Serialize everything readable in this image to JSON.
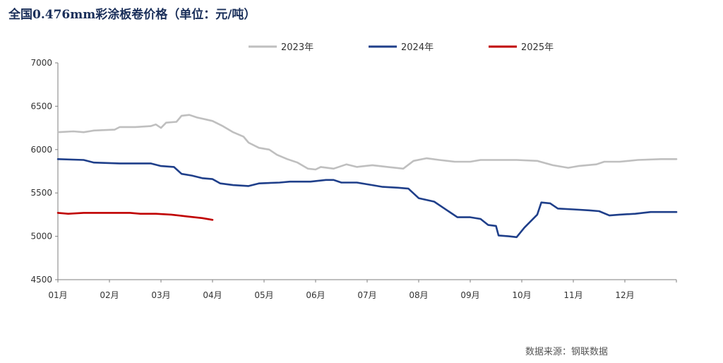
{
  "title": "全国0.476mm彩涂板卷价格（单位：元/吨）",
  "source": "数据来源：钢联数据",
  "chart_data": {
    "type": "line",
    "title": "全国0.476mm彩涂板卷价格（单位：元/吨）",
    "xlabel": "",
    "ylabel": "",
    "categories": [
      "01月",
      "02月",
      "03月",
      "04月",
      "05月",
      "06月",
      "07月",
      "08月",
      "09月",
      "10月",
      "11月",
      "12月"
    ],
    "ylim": [
      4500,
      7000
    ],
    "yticks": [
      4500,
      5000,
      5500,
      6000,
      6500,
      7000
    ],
    "x_unit": "month index (1 = start of 01月)",
    "legend_position": "top",
    "grid": false,
    "series": [
      {
        "name": "2023年",
        "color": "#bfbfbf",
        "points": [
          [
            1.0,
            6200
          ],
          [
            1.3,
            6210
          ],
          [
            1.5,
            6200
          ],
          [
            1.7,
            6220
          ],
          [
            2.1,
            6230
          ],
          [
            2.2,
            6260
          ],
          [
            2.5,
            6260
          ],
          [
            2.8,
            6270
          ],
          [
            2.9,
            6290
          ],
          [
            3.0,
            6250
          ],
          [
            3.1,
            6310
          ],
          [
            3.3,
            6320
          ],
          [
            3.4,
            6390
          ],
          [
            3.55,
            6400
          ],
          [
            3.7,
            6370
          ],
          [
            3.85,
            6350
          ],
          [
            4.0,
            6330
          ],
          [
            4.2,
            6270
          ],
          [
            4.4,
            6200
          ],
          [
            4.6,
            6150
          ],
          [
            4.7,
            6080
          ],
          [
            4.9,
            6020
          ],
          [
            5.1,
            6000
          ],
          [
            5.25,
            5940
          ],
          [
            5.45,
            5890
          ],
          [
            5.65,
            5850
          ],
          [
            5.85,
            5780
          ],
          [
            6.0,
            5770
          ],
          [
            6.1,
            5800
          ],
          [
            6.35,
            5780
          ],
          [
            6.6,
            5830
          ],
          [
            6.8,
            5800
          ],
          [
            7.1,
            5820
          ],
          [
            7.4,
            5800
          ],
          [
            7.7,
            5780
          ],
          [
            7.9,
            5870
          ],
          [
            8.15,
            5900
          ],
          [
            8.4,
            5880
          ],
          [
            8.7,
            5860
          ],
          [
            9.0,
            5860
          ],
          [
            9.2,
            5880
          ],
          [
            9.5,
            5880
          ],
          [
            9.9,
            5880
          ],
          [
            10.3,
            5870
          ],
          [
            10.6,
            5820
          ],
          [
            10.9,
            5790
          ],
          [
            11.1,
            5810
          ],
          [
            11.45,
            5830
          ],
          [
            11.6,
            5860
          ],
          [
            11.9,
            5860
          ],
          [
            12.25,
            5880
          ],
          [
            12.7,
            5890
          ],
          [
            13.0,
            5890
          ]
        ]
      },
      {
        "name": "2024年",
        "color": "#1f3f8a",
        "points": [
          [
            1.0,
            5890
          ],
          [
            1.5,
            5880
          ],
          [
            1.7,
            5850
          ],
          [
            2.2,
            5840
          ],
          [
            2.8,
            5840
          ],
          [
            3.0,
            5810
          ],
          [
            3.25,
            5800
          ],
          [
            3.4,
            5720
          ],
          [
            3.6,
            5700
          ],
          [
            3.8,
            5670
          ],
          [
            4.0,
            5660
          ],
          [
            4.15,
            5610
          ],
          [
            4.4,
            5590
          ],
          [
            4.7,
            5580
          ],
          [
            4.9,
            5610
          ],
          [
            5.3,
            5620
          ],
          [
            5.5,
            5630
          ],
          [
            5.9,
            5630
          ],
          [
            6.2,
            5650
          ],
          [
            6.35,
            5650
          ],
          [
            6.5,
            5620
          ],
          [
            6.8,
            5620
          ],
          [
            7.1,
            5590
          ],
          [
            7.3,
            5570
          ],
          [
            7.6,
            5560
          ],
          [
            7.8,
            5550
          ],
          [
            8.0,
            5440
          ],
          [
            8.3,
            5400
          ],
          [
            8.5,
            5320
          ],
          [
            8.75,
            5220
          ],
          [
            9.0,
            5220
          ],
          [
            9.2,
            5200
          ],
          [
            9.35,
            5130
          ],
          [
            9.5,
            5120
          ],
          [
            9.55,
            5010
          ],
          [
            9.75,
            5000
          ],
          [
            9.9,
            4990
          ],
          [
            10.05,
            5100
          ],
          [
            10.3,
            5250
          ],
          [
            10.38,
            5390
          ],
          [
            10.55,
            5380
          ],
          [
            10.7,
            5320
          ],
          [
            11.0,
            5310
          ],
          [
            11.3,
            5300
          ],
          [
            11.5,
            5290
          ],
          [
            11.7,
            5240
          ],
          [
            11.9,
            5250
          ],
          [
            12.2,
            5260
          ],
          [
            12.5,
            5280
          ],
          [
            13.0,
            5280
          ]
        ]
      },
      {
        "name": "2025年",
        "color": "#c00000",
        "points": [
          [
            1.0,
            5270
          ],
          [
            1.2,
            5260
          ],
          [
            1.5,
            5270
          ],
          [
            2.0,
            5270
          ],
          [
            2.4,
            5270
          ],
          [
            2.6,
            5260
          ],
          [
            2.9,
            5260
          ],
          [
            3.2,
            5250
          ],
          [
            3.5,
            5230
          ],
          [
            3.8,
            5210
          ],
          [
            4.0,
            5190
          ]
        ]
      }
    ]
  }
}
